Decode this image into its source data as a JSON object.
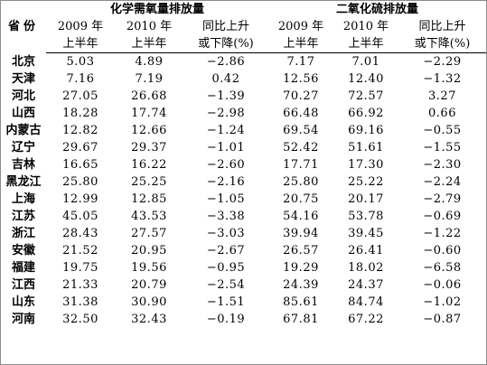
{
  "header": {
    "province_label": "省份",
    "cod_group": "化学需氧量排放量",
    "so2_group": "二氧化硫排放量",
    "col_2009_line1": "2009 年",
    "col_2009_line2": "上半年",
    "col_2010_line1": "2010 年",
    "col_2010_line2": "上半年",
    "col_change_line1": "同比上升",
    "col_change_line2": "或下降(%)"
  },
  "rows": [
    {
      "province": "北京",
      "cod_2009": "5.03",
      "cod_2010": "4.89",
      "cod_change": "−2.86",
      "so2_2009": "7.17",
      "so2_2010": "7.01",
      "so2_change": "−2.29"
    },
    {
      "province": "天津",
      "cod_2009": "7.16",
      "cod_2010": "7.19",
      "cod_change": "0.42",
      "so2_2009": "12.56",
      "so2_2010": "12.40",
      "so2_change": "−1.32"
    },
    {
      "province": "河北",
      "cod_2009": "27.05",
      "cod_2010": "26.68",
      "cod_change": "−1.39",
      "so2_2009": "70.27",
      "so2_2010": "72.57",
      "so2_change": "3.27"
    },
    {
      "province": "山西",
      "cod_2009": "18.28",
      "cod_2010": "17.74",
      "cod_change": "−2.98",
      "so2_2009": "66.48",
      "so2_2010": "66.92",
      "so2_change": "0.66"
    },
    {
      "province": "内蒙古",
      "cod_2009": "12.82",
      "cod_2010": "12.66",
      "cod_change": "−1.24",
      "so2_2009": "69.54",
      "so2_2010": "69.16",
      "so2_change": "−0.55"
    },
    {
      "province": "辽宁",
      "cod_2009": "29.67",
      "cod_2010": "29.37",
      "cod_change": "−1.01",
      "so2_2009": "52.42",
      "so2_2010": "51.61",
      "so2_change": "−1.55"
    },
    {
      "province": "吉林",
      "cod_2009": "16.65",
      "cod_2010": "16.22",
      "cod_change": "−2.60",
      "so2_2009": "17.71",
      "so2_2010": "17.30",
      "so2_change": "−2.30"
    },
    {
      "province": "黑龙江",
      "cod_2009": "25.80",
      "cod_2010": "25.25",
      "cod_change": "−2.16",
      "so2_2009": "25.80",
      "so2_2010": "25.22",
      "so2_change": "−2.24"
    },
    {
      "province": "上海",
      "cod_2009": "12.99",
      "cod_2010": "12.85",
      "cod_change": "−1.05",
      "so2_2009": "20.75",
      "so2_2010": "20.17",
      "so2_change": "−2.79"
    },
    {
      "province": "江苏",
      "cod_2009": "45.05",
      "cod_2010": "43.53",
      "cod_change": "−3.38",
      "so2_2009": "54.16",
      "so2_2010": "53.78",
      "so2_change": "−0.69"
    },
    {
      "province": "浙江",
      "cod_2009": "28.43",
      "cod_2010": "27.57",
      "cod_change": "−3.03",
      "so2_2009": "39.94",
      "so2_2010": "39.45",
      "so2_change": "−1.22"
    },
    {
      "province": "安徽",
      "cod_2009": "21.52",
      "cod_2010": "20.95",
      "cod_change": "−2.67",
      "so2_2009": "26.57",
      "so2_2010": "26.41",
      "so2_change": "−0.60"
    },
    {
      "province": "福建",
      "cod_2009": "19.75",
      "cod_2010": "19.56",
      "cod_change": "−0.95",
      "so2_2009": "19.29",
      "so2_2010": "18.02",
      "so2_change": "−6.58"
    },
    {
      "province": "江西",
      "cod_2009": "21.33",
      "cod_2010": "20.79",
      "cod_change": "−2.54",
      "so2_2009": "24.39",
      "so2_2010": "24.37",
      "so2_change": "−0.06"
    },
    {
      "province": "山东",
      "cod_2009": "31.38",
      "cod_2010": "30.90",
      "cod_change": "−1.51",
      "so2_2009": "85.61",
      "so2_2010": "84.74",
      "so2_change": "−1.02"
    },
    {
      "province": "河南",
      "cod_2009": "32.50",
      "cod_2010": "32.43",
      "cod_change": "−0.19",
      "so2_2009": "67.81",
      "so2_2010": "67.22",
      "so2_change": "−0.87"
    }
  ]
}
